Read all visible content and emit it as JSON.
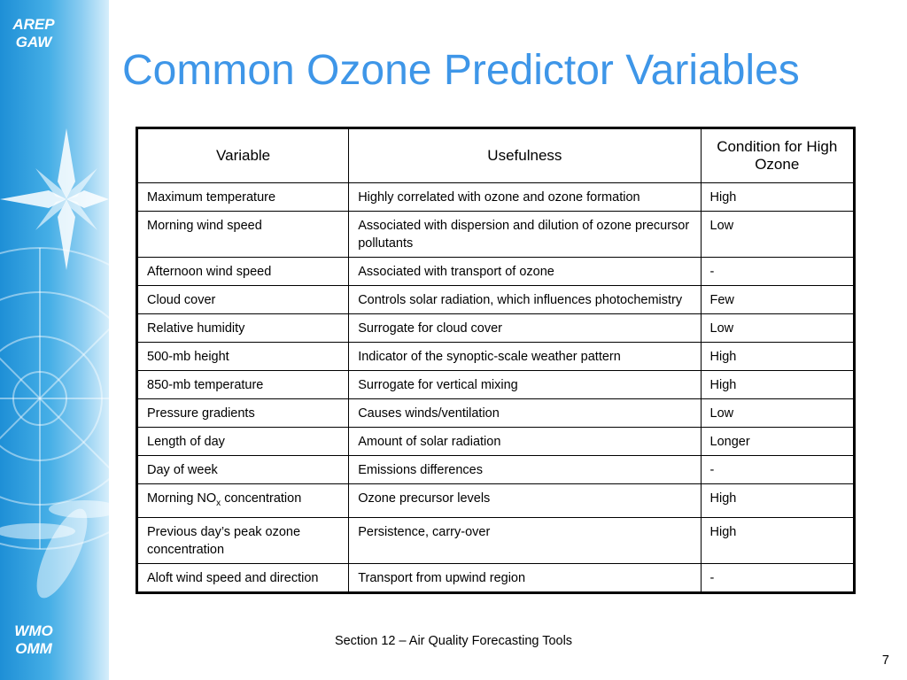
{
  "logos": {
    "top_line1": "AREP",
    "top_line2": "GAW",
    "bottom_line1": "WMO",
    "bottom_line2": "OMM"
  },
  "title": "Common Ozone Predictor Variables",
  "table": {
    "headers": [
      "Variable",
      "Usefulness",
      "Condition for High Ozone"
    ],
    "rows": [
      {
        "variable": "Maximum temperature",
        "usefulness": "Highly correlated with ozone and ozone formation",
        "condition": "High"
      },
      {
        "variable": "Morning wind speed",
        "usefulness": "Associated with dispersion and dilution of ozone precursor pollutants",
        "condition": "Low"
      },
      {
        "variable": "Afternoon wind speed",
        "usefulness": "Associated with transport of ozone",
        "condition": "-"
      },
      {
        "variable": "Cloud cover",
        "usefulness": "Controls solar radiation, which influences photochemistry",
        "condition": "Few"
      },
      {
        "variable": "Relative humidity",
        "usefulness": "Surrogate for cloud cover",
        "condition": "Low"
      },
      {
        "variable": "500-mb height",
        "usefulness": "Indicator of the synoptic-scale weather pattern",
        "condition": "High"
      },
      {
        "variable": "850-mb temperature",
        "usefulness": "Surrogate for vertical mixing",
        "condition": "High"
      },
      {
        "variable": "Pressure gradients",
        "usefulness": "Causes winds/ventilation",
        "condition": "Low"
      },
      {
        "variable": "Length of day",
        "usefulness": "Amount of solar radiation",
        "condition": "Longer"
      },
      {
        "variable": "Day of week",
        "usefulness": "Emissions differences",
        "condition": "-"
      },
      {
        "variable_prefix": "Morning NO",
        "variable_sub": "x",
        "variable_suffix": " concentration",
        "usefulness": "Ozone precursor levels",
        "condition": "High"
      },
      {
        "variable": "Previous day’s peak ozone concentration",
        "usefulness": "Persistence, carry-over",
        "condition": "High"
      },
      {
        "variable": "Aloft wind speed and direction",
        "usefulness": "Transport from upwind region",
        "condition": "-"
      }
    ]
  },
  "footer": "Section 12 – Air Quality Forecasting Tools",
  "page_number": "7",
  "colors": {
    "title": "#3e96e8",
    "sidebar": "#1e8fd6"
  },
  "icons": {
    "sidebar_graphic": "compass-star-icon"
  }
}
